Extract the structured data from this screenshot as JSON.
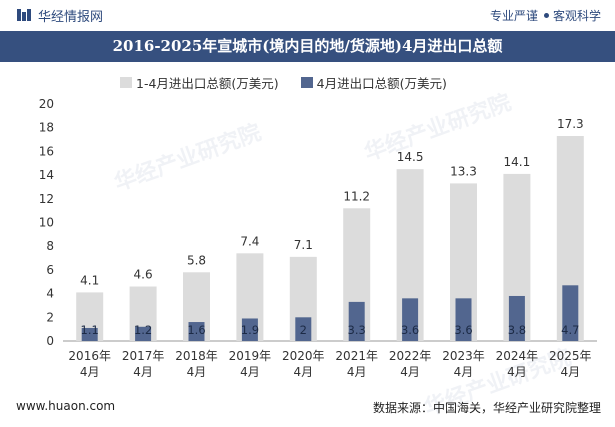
{
  "header": {
    "brand": "华经情报网",
    "tagline_left": "专业严谨",
    "tagline_right": "客观科学"
  },
  "title": "2016-2025年宣城市(境内目的地/货源地)4月进出口总额",
  "colors": {
    "total": "#dcdcdc",
    "april": "#52668f",
    "titlebar": "#36507f"
  },
  "chart_data": {
    "type": "bar",
    "categories": [
      [
        "2016年",
        "4月"
      ],
      [
        "2017年",
        "4月"
      ],
      [
        "2018年",
        "4月"
      ],
      [
        "2019年",
        "4月"
      ],
      [
        "2020年",
        "4月"
      ],
      [
        "2021年",
        "4月"
      ],
      [
        "2022年",
        "4月"
      ],
      [
        "2023年",
        "4月"
      ],
      [
        "2024年",
        "4月"
      ],
      [
        "2025年",
        "4月"
      ]
    ],
    "series": [
      {
        "name": "1-4月进出口总额(万美元)",
        "values": [
          4.1,
          4.6,
          5.8,
          7.4,
          7.1,
          11.2,
          14.5,
          13.3,
          14.1,
          17.3
        ],
        "labels": [
          "4.1",
          "4.6",
          "5.8",
          "7.4",
          "7.1",
          "11.2",
          "14.5",
          "13.3",
          "14.1",
          "17.3"
        ]
      },
      {
        "name": "4月进出口总额(万美元)",
        "values": [
          1.1,
          1.2,
          1.6,
          1.9,
          2,
          3.3,
          3.6,
          3.6,
          3.8,
          4.7
        ],
        "labels": [
          "1.1",
          "1.2",
          "1.6",
          "1.9",
          "2",
          "3.3",
          "3.6",
          "3.6",
          "3.8",
          "4.7"
        ]
      }
    ],
    "yticks": [
      "0",
      "2",
      "4",
      "6",
      "8",
      "10",
      "12",
      "14",
      "16",
      "18",
      "20"
    ],
    "ylim": [
      0,
      20
    ],
    "legend_position": "top"
  },
  "footer": {
    "website": "www.huaon.com",
    "source": "数据来源：中国海关，华经产业研究院整理"
  },
  "watermark_text": "华经产业研究院"
}
